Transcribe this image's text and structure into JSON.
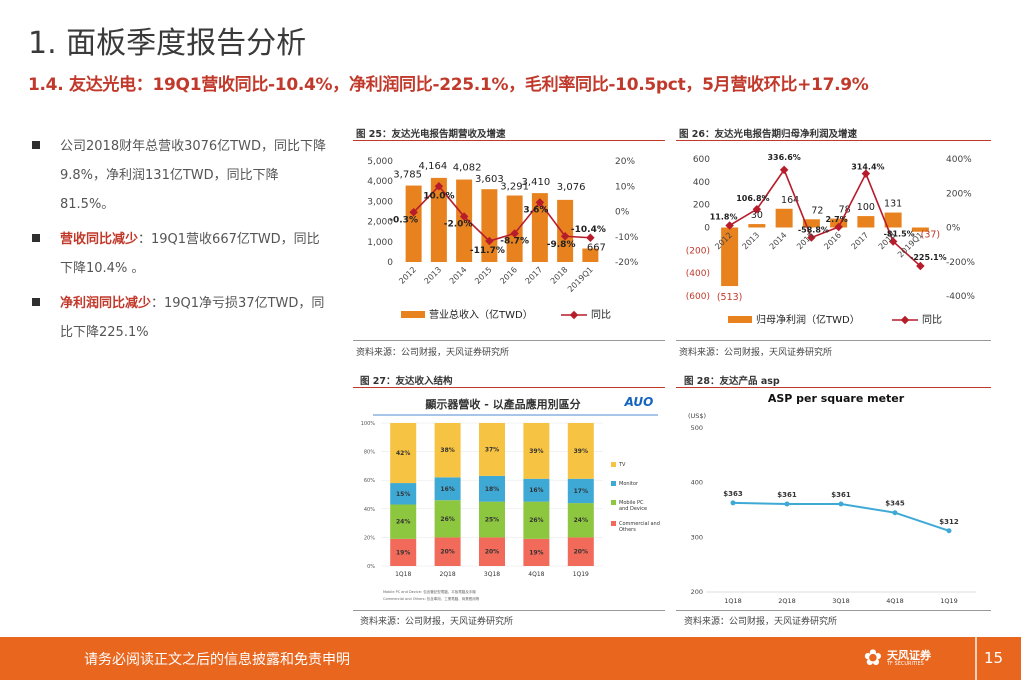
{
  "page": {
    "title": "1. 面板季度报告分析",
    "subtitle": "1.4. 友达光电：19Q1营收同比-10.4%，净利润同比-225.1%，毛利率同比-10.5pct，5月营收环比+17.9%",
    "page_number": "15"
  },
  "bullets": [
    {
      "bold": "",
      "text": "公司2018财年总营收3076亿TWD，同比下降9.8%，净利润131亿TWD，同比下降81.5%。"
    },
    {
      "bold": "营收同比减少",
      "text": "：19Q1营收667亿TWD，同比下降10.4% 。"
    },
    {
      "bold": "净利润同比减少",
      "text": "：19Q1净亏损37亿TWD，同比下降225.1%"
    }
  ],
  "footer": {
    "disclaimer": "请务必阅读正文之后的信息披露和免责申明",
    "logo_main": "天风证券",
    "logo_sub": "TF SECURITIES"
  },
  "colors": {
    "accent": "#c0392b",
    "bar": "#e8821e",
    "line": "#b71c2b",
    "footer": "#e8661e"
  },
  "chart_data": [
    {
      "id": "fig25",
      "figure_title": "图 25：友达光电报告期营收及增速",
      "source": "资料来源：公司财报，天风证券研究所",
      "type": "bar",
      "categories": [
        "2012",
        "2013",
        "2014",
        "2015",
        "2016",
        "2017",
        "2018",
        "2019Q1"
      ],
      "series": [
        {
          "name": "营业总收入（亿TWD）",
          "type": "bar",
          "axis": "left",
          "values": [
            3785,
            4164,
            4082,
            3603,
            3291,
            3410,
            3076,
            667
          ],
          "labels": [
            "3,785",
            "4,164",
            "4,082",
            "3,603",
            "3,291",
            "3,410",
            "3,076",
            "667"
          ]
        },
        {
          "name": "同比",
          "type": "line",
          "axis": "right",
          "values": [
            -0.3,
            10.0,
            -2.0,
            -11.7,
            -8.7,
            3.6,
            -9.8,
            -10.4
          ],
          "labels": [
            "-0.3%",
            "10.0%",
            "-2.0%",
            "-11.7%",
            "-8.7%",
            "3.6%",
            "-9.8%",
            "-10.4%"
          ]
        }
      ],
      "y_left": {
        "min": 0,
        "max": 5000,
        "ticks": [
          "0",
          "1,000",
          "2,000",
          "3,000",
          "4,000",
          "5,000"
        ]
      },
      "y_right": {
        "min": -20,
        "max": 20,
        "ticks": [
          "-20%",
          "-10%",
          "0%",
          "10%",
          "20%"
        ]
      }
    },
    {
      "id": "fig26",
      "figure_title": "图 26：友达光电报告期归母净利润及增速",
      "source": "资料来源：公司财报，天风证券研究所",
      "type": "bar",
      "categories": [
        "2012",
        "2013",
        "2014",
        "2015",
        "2016",
        "2017",
        "2018",
        "2019Q1"
      ],
      "series": [
        {
          "name": "归母净利润（亿TWD）",
          "type": "bar",
          "axis": "left",
          "values": [
            -513,
            30,
            164,
            72,
            78,
            100,
            131,
            -37
          ],
          "labels": [
            "(513)",
            "30",
            "164",
            "72",
            "78",
            "100",
            "131",
            "(37)"
          ]
        },
        {
          "name": "同比",
          "type": "line",
          "axis": "right",
          "values": [
            11.8,
            106.8,
            336.6,
            -58.8,
            2.7,
            314.4,
            -81.5,
            -225.1
          ],
          "labels": [
            "11.8%",
            "106.8%",
            "336.6%",
            "-58.8%",
            "2.7%",
            "314.4%",
            "-81.5%",
            "-225.1%"
          ]
        }
      ],
      "y_left": {
        "min": -600,
        "max": 600,
        "ticks": [
          "(600)",
          "(400)",
          "(200)",
          "0",
          "200",
          "400",
          "600"
        ]
      },
      "y_right": {
        "min": -400,
        "max": 400,
        "ticks": [
          "-400%",
          "-200%",
          "0%",
          "200%",
          "400%"
        ]
      }
    },
    {
      "id": "fig27",
      "figure_title": "图 27：友达收入结构",
      "source": "资料来源：公司财报，天风证券研究所",
      "type": "bar",
      "stacked": true,
      "chart_title": "顯示器營收 - 以產品應用別區分",
      "brand": "AUO",
      "categories": [
        "1Q18",
        "2Q18",
        "3Q18",
        "4Q18",
        "1Q19"
      ],
      "series": [
        {
          "name": "Commercial and Others",
          "color": "#f26a5a",
          "values": [
            19,
            20,
            20,
            19,
            20
          ]
        },
        {
          "name": "Mobile PC and Device",
          "color": "#8dc63f",
          "values": [
            24,
            26,
            25,
            26,
            24
          ]
        },
        {
          "name": "Monitor",
          "color": "#3fa9d6",
          "values": [
            15,
            16,
            18,
            16,
            17
          ]
        },
        {
          "name": "TV",
          "color": "#f7c342",
          "values": [
            42,
            38,
            37,
            39,
            39
          ]
        }
      ],
      "y_ticks": [
        "0%",
        "20%",
        "40%",
        "60%",
        "80%",
        "100%"
      ],
      "footnote_1": "Mobile PC and Device: 包含筆記型電腦、平板電腦及手機",
      "footnote_2": "Commercial and Others: 包含車用、工業電腦、商業應用等"
    },
    {
      "id": "fig28",
      "figure_title": "图 28：友达产品 asp",
      "source": "资料来源：公司财报，天风证券研究所",
      "type": "line",
      "chart_title": "ASP per square meter",
      "unit": "(US$)",
      "categories": [
        "1Q18",
        "2Q18",
        "3Q18",
        "4Q18",
        "1Q19"
      ],
      "values": [
        363,
        361,
        361,
        345,
        312
      ],
      "labels": [
        "$363",
        "$361",
        "$361",
        "$345",
        "$312"
      ],
      "y_ticks": [
        "200",
        "300",
        "400",
        "500"
      ],
      "ylim": [
        200,
        500
      ]
    }
  ]
}
